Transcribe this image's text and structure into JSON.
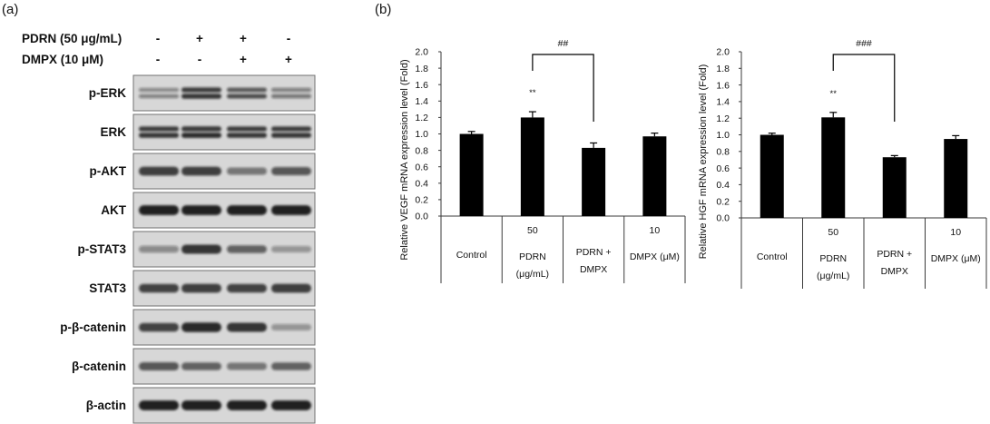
{
  "panel_a": {
    "label": "(a)",
    "treatments": [
      {
        "label": "PDRN (50 μg/mL)",
        "signs": [
          "-",
          "+",
          "+",
          "-"
        ]
      },
      {
        "label": "DMPX (10 μM)",
        "signs": [
          "-",
          "-",
          "+",
          "+"
        ]
      }
    ],
    "blots": [
      {
        "label": "p-ERK",
        "doublet": true,
        "intensity": [
          0.45,
          0.85,
          0.7,
          0.5
        ]
      },
      {
        "label": "ERK",
        "doublet": true,
        "intensity": [
          0.85,
          0.9,
          0.85,
          0.85
        ]
      },
      {
        "label": "p-AKT",
        "intensity": [
          0.8,
          0.8,
          0.5,
          0.65
        ]
      },
      {
        "label": "AKT",
        "intensity": [
          0.95,
          0.95,
          0.95,
          0.95
        ]
      },
      {
        "label": "p-STAT3",
        "intensity": [
          0.4,
          0.85,
          0.6,
          0.35
        ]
      },
      {
        "label": "STAT3",
        "intensity": [
          0.75,
          0.8,
          0.75,
          0.8
        ]
      },
      {
        "label": "p-β-catenin",
        "intensity": [
          0.75,
          0.9,
          0.85,
          0.35
        ]
      },
      {
        "label": "β-catenin",
        "intensity": [
          0.65,
          0.6,
          0.5,
          0.6
        ]
      },
      {
        "label": "β-actin",
        "intensity": [
          0.95,
          0.95,
          0.95,
          0.95
        ]
      }
    ]
  },
  "panel_b": {
    "label": "(b)"
  },
  "chart_data": [
    {
      "type": "bar",
      "ylabel": "Relative VEGF mRNA expression level (Fold)",
      "ylim": [
        0,
        2.0
      ],
      "yticks": [
        "0.0",
        "0.2",
        "0.4",
        "0.6",
        "0.8",
        "1.0",
        "1.2",
        "1.4",
        "1.6",
        "1.8",
        "2.0"
      ],
      "categories": [
        {
          "label": [
            "Control"
          ]
        },
        {
          "dose": "50",
          "label": [
            "PDRN",
            "(μg/mL)"
          ]
        },
        {
          "label": [
            "PDRN +",
            "DMPX"
          ]
        },
        {
          "dose": "10",
          "label": [
            "DMPX (μM)"
          ]
        }
      ],
      "values": [
        1.0,
        1.2,
        0.83,
        0.97
      ],
      "errors": [
        0.03,
        0.07,
        0.06,
        0.04
      ],
      "significance": [
        {
          "category": 1,
          "label": "**"
        }
      ],
      "comparisons": [
        {
          "from": 1,
          "to": 2,
          "label": "##"
        }
      ],
      "bar_color": "#000000",
      "grid": false
    },
    {
      "type": "bar",
      "ylabel": "Relative HGF mRNA expression level (Fold)",
      "ylim": [
        0,
        2.0
      ],
      "yticks": [
        "0.0",
        "0.2",
        "0.4",
        "0.6",
        "0.8",
        "1.0",
        "1.2",
        "1.4",
        "1.6",
        "1.8",
        "2.0"
      ],
      "categories": [
        {
          "label": [
            "Control"
          ]
        },
        {
          "dose": "50",
          "label": [
            "PDRN",
            "(μg/mL)"
          ]
        },
        {
          "label": [
            "PDRN +",
            "DMPX"
          ]
        },
        {
          "dose": "10",
          "label": [
            "DMPX (μM)"
          ]
        }
      ],
      "values": [
        1.0,
        1.21,
        0.73,
        0.95
      ],
      "errors": [
        0.02,
        0.06,
        0.02,
        0.04
      ],
      "significance": [
        {
          "category": 1,
          "label": "**"
        }
      ],
      "comparisons": [
        {
          "from": 1,
          "to": 2,
          "label": "###"
        }
      ],
      "bar_color": "#000000",
      "grid": false
    }
  ]
}
